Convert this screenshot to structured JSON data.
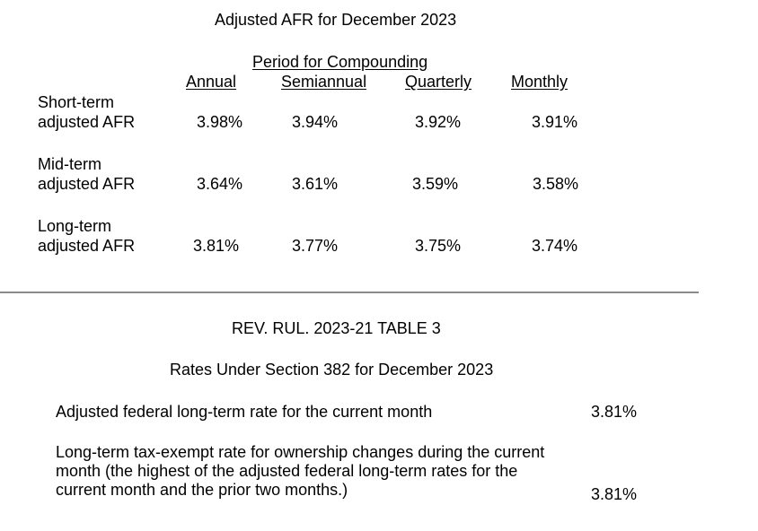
{
  "table1": {
    "title": "Adjusted AFR for December 2023",
    "period_header": "Period for Compounding",
    "columns": [
      "Annual",
      "Semiannual",
      "Quarterly",
      "Monthly"
    ],
    "rows": [
      {
        "label_line1": "Short-term",
        "label_line2": "adjusted AFR",
        "values": [
          "3.98%",
          "3.94%",
          "3.92%",
          "3.91%"
        ]
      },
      {
        "label_line1": "Mid-term",
        "label_line2": "adjusted AFR",
        "values": [
          "3.64%",
          "3.61%",
          "3.59%",
          "3.58%"
        ]
      },
      {
        "label_line1": "Long-term",
        "label_line2": "adjusted AFR",
        "values": [
          "3.81%",
          "3.77%",
          "3.75%",
          "3.74%"
        ]
      }
    ]
  },
  "table3": {
    "heading": "REV. RUL. 2023-21 TABLE 3",
    "subheading": "Rates Under Section 382 for December 2023",
    "items": [
      {
        "text": "Adjusted federal long-term rate for the current month",
        "value": "3.81%"
      },
      {
        "text": "Long-term tax-exempt rate for ownership changes during the current month (the highest of the adjusted federal long-term rates for the current month and the prior two months.)",
        "value": "3.81%"
      }
    ]
  }
}
